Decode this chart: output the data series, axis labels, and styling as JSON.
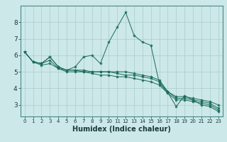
{
  "title": "",
  "xlabel": "Humidex (Indice chaleur)",
  "ylabel": "",
  "bg_color": "#cce8e8",
  "line_color": "#1a6b5a",
  "grid_color": "#aacccc",
  "xlim": [
    -0.5,
    23.5
  ],
  "ylim": [
    2.3,
    9.0
  ],
  "yticks": [
    3,
    4,
    5,
    6,
    7,
    8
  ],
  "xticks": [
    0,
    1,
    2,
    3,
    4,
    5,
    6,
    7,
    8,
    9,
    10,
    11,
    12,
    13,
    14,
    15,
    16,
    17,
    18,
    19,
    20,
    21,
    22,
    23
  ],
  "series": [
    [
      6.2,
      5.6,
      5.5,
      5.9,
      5.3,
      5.1,
      5.3,
      5.9,
      6.0,
      5.5,
      6.8,
      7.7,
      8.6,
      7.2,
      6.8,
      6.6,
      4.3,
      3.75,
      2.9,
      3.55,
      3.3,
      3.0,
      2.9,
      2.6
    ],
    [
      6.2,
      5.6,
      5.5,
      5.9,
      5.3,
      5.1,
      5.1,
      5.1,
      5.0,
      5.0,
      5.0,
      5.0,
      5.0,
      4.9,
      4.8,
      4.7,
      4.5,
      3.8,
      3.5,
      3.5,
      3.4,
      3.3,
      3.2,
      3.0
    ],
    [
      6.2,
      5.6,
      5.5,
      5.7,
      5.2,
      5.1,
      5.1,
      5.0,
      5.0,
      5.0,
      5.0,
      4.9,
      4.8,
      4.8,
      4.7,
      4.6,
      4.4,
      3.8,
      3.4,
      3.4,
      3.3,
      3.2,
      3.1,
      2.8
    ],
    [
      6.2,
      5.6,
      5.4,
      5.5,
      5.2,
      5.0,
      5.0,
      5.0,
      4.9,
      4.8,
      4.8,
      4.7,
      4.7,
      4.6,
      4.5,
      4.4,
      4.2,
      3.7,
      3.3,
      3.3,
      3.2,
      3.1,
      3.0,
      2.7
    ]
  ],
  "spine_color": "#4a8888",
  "tick_color": "#1a3a3a",
  "xlabel_fontsize": 7,
  "xlabel_fontweight": "bold",
  "xtick_fontsize": 5,
  "ytick_fontsize": 6.5
}
